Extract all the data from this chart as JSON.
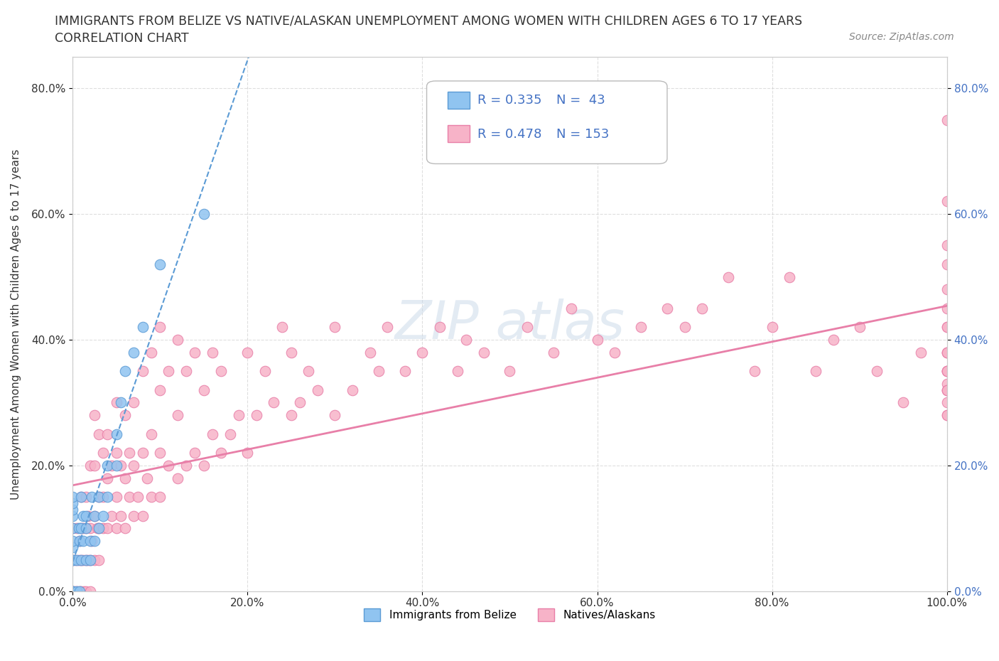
{
  "title": "IMMIGRANTS FROM BELIZE VS NATIVE/ALASKAN UNEMPLOYMENT AMONG WOMEN WITH CHILDREN AGES 6 TO 17 YEARS",
  "subtitle": "CORRELATION CHART",
  "source": "Source: ZipAtlas.com",
  "ylabel": "Unemployment Among Women with Children Ages 6 to 17 years",
  "xlim": [
    0.0,
    1.0
  ],
  "ylim": [
    0.0,
    0.85
  ],
  "xtick_labels": [
    "0.0%",
    "20.0%",
    "40.0%",
    "60.0%",
    "80.0%",
    "100.0%"
  ],
  "xtick_vals": [
    0.0,
    0.2,
    0.4,
    0.6,
    0.8,
    1.0
  ],
  "ytick_labels": [
    "0.0%",
    "20.0%",
    "40.0%",
    "60.0%",
    "80.0%"
  ],
  "ytick_vals": [
    0.0,
    0.2,
    0.4,
    0.6,
    0.8
  ],
  "belize_color": "#90c4f0",
  "belize_edge_color": "#5b9bd5",
  "native_color": "#f7b3c8",
  "native_edge_color": "#e87fa8",
  "trendline_belize_color": "#5b9bd5",
  "trendline_native_color": "#e87fa8",
  "legend_belize_label": "Immigrants from Belize",
  "legend_native_label": "Natives/Alaskans",
  "R_belize": 0.335,
  "N_belize": 43,
  "R_native": 0.478,
  "N_native": 153,
  "background_color": "#ffffff",
  "grid_color": "#d0d0d0",
  "blue_text": "#4472c4",
  "dark_text": "#333333",
  "belize_scatter_x": [
    0.0,
    0.0,
    0.0,
    0.0,
    0.0,
    0.0,
    0.0,
    0.0,
    0.0,
    0.0,
    0.0,
    0.0,
    0.005,
    0.005,
    0.007,
    0.008,
    0.008,
    0.01,
    0.01,
    0.01,
    0.012,
    0.012,
    0.015,
    0.015,
    0.015,
    0.02,
    0.02,
    0.022,
    0.025,
    0.025,
    0.03,
    0.03,
    0.035,
    0.04,
    0.04,
    0.05,
    0.05,
    0.055,
    0.06,
    0.07,
    0.08,
    0.1,
    0.15
  ],
  "belize_scatter_y": [
    0.0,
    0.0,
    0.0,
    0.05,
    0.05,
    0.07,
    0.08,
    0.1,
    0.12,
    0.13,
    0.14,
    0.15,
    0.0,
    0.05,
    0.1,
    0.0,
    0.08,
    0.05,
    0.1,
    0.15,
    0.08,
    0.12,
    0.05,
    0.1,
    0.12,
    0.05,
    0.08,
    0.15,
    0.08,
    0.12,
    0.1,
    0.15,
    0.12,
    0.15,
    0.2,
    0.2,
    0.25,
    0.3,
    0.35,
    0.38,
    0.42,
    0.52,
    0.6
  ],
  "native_scatter_x": [
    0.0,
    0.0,
    0.0,
    0.002,
    0.003,
    0.005,
    0.005,
    0.007,
    0.008,
    0.008,
    0.01,
    0.01,
    0.01,
    0.01,
    0.012,
    0.012,
    0.013,
    0.015,
    0.015,
    0.015,
    0.015,
    0.018,
    0.018,
    0.02,
    0.02,
    0.02,
    0.02,
    0.022,
    0.025,
    0.025,
    0.025,
    0.025,
    0.028,
    0.03,
    0.03,
    0.03,
    0.03,
    0.035,
    0.035,
    0.035,
    0.04,
    0.04,
    0.04,
    0.045,
    0.045,
    0.05,
    0.05,
    0.05,
    0.05,
    0.055,
    0.055,
    0.06,
    0.06,
    0.06,
    0.065,
    0.065,
    0.07,
    0.07,
    0.07,
    0.075,
    0.08,
    0.08,
    0.08,
    0.085,
    0.09,
    0.09,
    0.09,
    0.1,
    0.1,
    0.1,
    0.1,
    0.11,
    0.11,
    0.12,
    0.12,
    0.12,
    0.13,
    0.13,
    0.14,
    0.14,
    0.15,
    0.15,
    0.16,
    0.16,
    0.17,
    0.17,
    0.18,
    0.19,
    0.2,
    0.2,
    0.21,
    0.22,
    0.23,
    0.24,
    0.25,
    0.25,
    0.26,
    0.27,
    0.28,
    0.3,
    0.3,
    0.32,
    0.34,
    0.35,
    0.36,
    0.38,
    0.4,
    0.42,
    0.44,
    0.45,
    0.47,
    0.5,
    0.52,
    0.55,
    0.57,
    0.6,
    0.62,
    0.65,
    0.68,
    0.7,
    0.72,
    0.75,
    0.78,
    0.8,
    0.82,
    0.85,
    0.87,
    0.9,
    0.92,
    0.95,
    0.97,
    1.0,
    1.0,
    1.0,
    1.0,
    1.0,
    1.0,
    1.0,
    1.0,
    1.0,
    1.0,
    1.0,
    1.0,
    1.0,
    1.0,
    1.0,
    1.0,
    1.0,
    1.0,
    1.0,
    1.0,
    1.0,
    1.0
  ],
  "native_scatter_y": [
    0.0,
    0.05,
    0.1,
    0.0,
    0.05,
    0.0,
    0.1,
    0.05,
    0.0,
    0.08,
    0.0,
    0.05,
    0.1,
    0.15,
    0.05,
    0.1,
    0.0,
    0.0,
    0.05,
    0.1,
    0.15,
    0.05,
    0.12,
    0.0,
    0.05,
    0.1,
    0.2,
    0.08,
    0.05,
    0.12,
    0.2,
    0.28,
    0.1,
    0.05,
    0.1,
    0.15,
    0.25,
    0.1,
    0.15,
    0.22,
    0.1,
    0.18,
    0.25,
    0.12,
    0.2,
    0.1,
    0.15,
    0.22,
    0.3,
    0.12,
    0.2,
    0.1,
    0.18,
    0.28,
    0.15,
    0.22,
    0.12,
    0.2,
    0.3,
    0.15,
    0.12,
    0.22,
    0.35,
    0.18,
    0.15,
    0.25,
    0.38,
    0.15,
    0.22,
    0.32,
    0.42,
    0.2,
    0.35,
    0.18,
    0.28,
    0.4,
    0.2,
    0.35,
    0.22,
    0.38,
    0.2,
    0.32,
    0.25,
    0.38,
    0.22,
    0.35,
    0.25,
    0.28,
    0.22,
    0.38,
    0.28,
    0.35,
    0.3,
    0.42,
    0.28,
    0.38,
    0.3,
    0.35,
    0.32,
    0.28,
    0.42,
    0.32,
    0.38,
    0.35,
    0.42,
    0.35,
    0.38,
    0.42,
    0.35,
    0.4,
    0.38,
    0.35,
    0.42,
    0.38,
    0.45,
    0.4,
    0.38,
    0.42,
    0.45,
    0.42,
    0.45,
    0.5,
    0.35,
    0.42,
    0.5,
    0.35,
    0.4,
    0.42,
    0.35,
    0.3,
    0.38,
    0.32,
    0.35,
    0.28,
    0.33,
    0.3,
    0.35,
    0.28,
    0.38,
    0.42,
    0.32,
    0.35,
    0.38,
    0.42,
    0.35,
    0.38,
    0.32,
    0.75,
    0.55,
    0.45,
    0.52,
    0.62,
    0.48
  ]
}
